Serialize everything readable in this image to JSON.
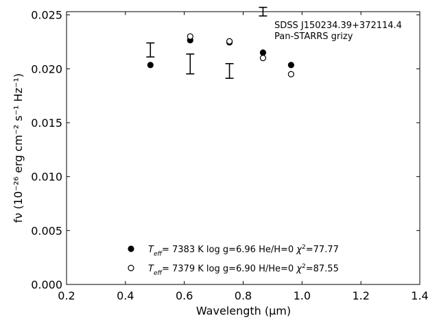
{
  "chart_data": {
    "type": "scatter",
    "object_label": "SDSS J150234.39+372114.4",
    "survey_label": "Pan-STARRS grizy",
    "xlabel": "Wavelength (μm)",
    "ylabel": "fν (10⁻²⁶ erg cm⁻² s⁻¹ Hz⁻¹)",
    "xlim": [
      0.2,
      1.4
    ],
    "ylim": [
      0.0,
      0.0253
    ],
    "x_ticks": [
      0.2,
      0.4,
      0.6,
      0.8,
      1.0,
      1.2,
      1.4
    ],
    "x_tick_labels": [
      "0.2",
      "0.4",
      "0.6",
      "0.8",
      "1.0",
      "1.2",
      "1.4"
    ],
    "y_ticks": [
      0.0,
      0.005,
      0.01,
      0.015,
      0.02,
      0.025
    ],
    "y_tick_labels": [
      "0.000",
      "0.005",
      "0.010",
      "0.015",
      "0.020",
      "0.025"
    ],
    "grid": false,
    "legend_position": "lower-center",
    "observed": [
      {
        "x": 0.4849,
        "y": 0.02175,
        "err": 0.00065
      },
      {
        "x": 0.6201,
        "y": 0.02045,
        "err": 0.00092
      },
      {
        "x": 0.7535,
        "y": 0.0198,
        "err": 0.00068
      },
      {
        "x": 0.8674,
        "y": 0.0253,
        "err": 0.0004
      }
    ],
    "series": [
      {
        "name": "He/H=0",
        "marker": "filled-circle",
        "legend": {
          "teff": "7383",
          "logg": "6.96",
          "comp": "He/H=0",
          "chi2": "77.77"
        },
        "points": [
          {
            "x": 0.4849,
            "y": 0.02035
          },
          {
            "x": 0.6201,
            "y": 0.02265
          },
          {
            "x": 0.7535,
            "y": 0.02245
          },
          {
            "x": 0.8674,
            "y": 0.0215
          },
          {
            "x": 0.9628,
            "y": 0.02035
          }
        ]
      },
      {
        "name": "H/He=0",
        "marker": "open-circle",
        "legend": {
          "teff": "7379",
          "logg": "6.90",
          "comp": "H/He=0",
          "chi2": "87.55"
        },
        "points": [
          {
            "x": 0.6201,
            "y": 0.023
          },
          {
            "x": 0.7535,
            "y": 0.02255
          },
          {
            "x": 0.8674,
            "y": 0.021
          },
          {
            "x": 0.9628,
            "y": 0.0195
          }
        ]
      }
    ]
  }
}
